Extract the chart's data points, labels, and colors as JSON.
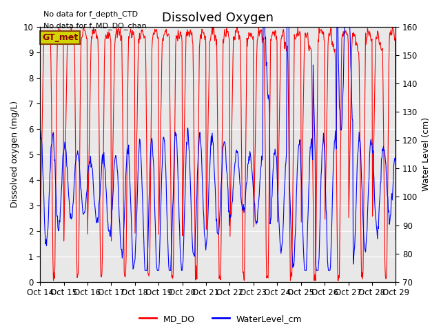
{
  "title": "Dissolved Oxygen",
  "ylabel_left": "Dissolved oxygen (mg/L)",
  "ylabel_right": "Water Level (cm)",
  "ylim_left": [
    0.0,
    10.0
  ],
  "ylim_right": [
    70,
    160
  ],
  "yticks_left": [
    0.0,
    1.0,
    2.0,
    3.0,
    4.0,
    5.0,
    6.0,
    7.0,
    8.0,
    9.0,
    10.0
  ],
  "yticks_right": [
    70,
    80,
    90,
    100,
    110,
    120,
    130,
    140,
    150,
    160
  ],
  "xlabel_ticks": [
    "Oct 14",
    "Oct 15",
    "Oct 16",
    "Oct 17",
    "Oct 18",
    "Oct 19",
    "Oct 20",
    "Oct 21",
    "Oct 22",
    "Oct 23",
    "Oct 24",
    "Oct 25",
    "Oct 26",
    "Oct 27",
    "Oct 28",
    "Oct 29"
  ],
  "annotation1": "No data for f_depth_CTD",
  "annotation2": "No data for f_MD_DO_chan",
  "gt_label": "GT_met",
  "legend_labels": [
    "MD_DO",
    "WaterLevel_cm"
  ],
  "line_colors": [
    "red",
    "blue"
  ],
  "bg_color": "#e8e8e8",
  "fig_bg": "white",
  "title_fontsize": 13,
  "axis_label_fontsize": 9,
  "tick_fontsize": 8.5,
  "annot_fontsize": 8
}
